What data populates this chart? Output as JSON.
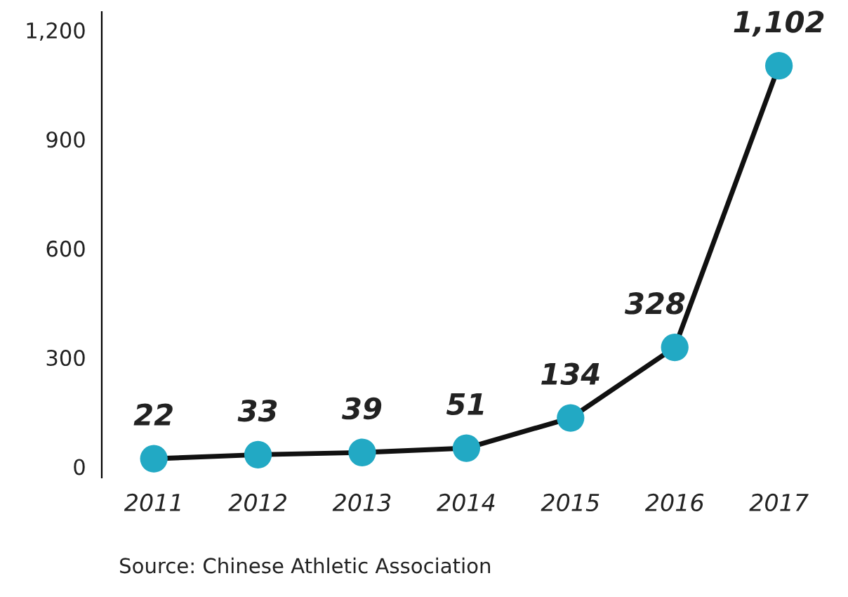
{
  "chart_data": {
    "type": "line",
    "categories": [
      "2011",
      "2012",
      "2013",
      "2014",
      "2015",
      "2016",
      "2017"
    ],
    "series": [
      {
        "color": "#111111",
        "values": [
          22,
          33,
          39,
          51,
          134,
          328,
          1102
        ]
      }
    ],
    "colors": [
      "#22a9c4",
      "#22a9c4",
      "#22a9c4",
      "#22a9c4",
      "#22a9c4",
      "#22a9c4",
      "#22a9c4"
    ],
    "value_labels": [
      "22",
      "33",
      "39",
      "51",
      "134",
      "328",
      "1,102"
    ],
    "ylim": [
      -30,
      1250
    ],
    "yticks": [
      0,
      300,
      600,
      900,
      {
        "value": 1200,
        "label": "1,200"
      }
    ],
    "marker": "circle",
    "line_style": "solid",
    "grid": false,
    "legend": false,
    "annotations": [
      "Source: Chinese Athletic Association"
    ]
  }
}
